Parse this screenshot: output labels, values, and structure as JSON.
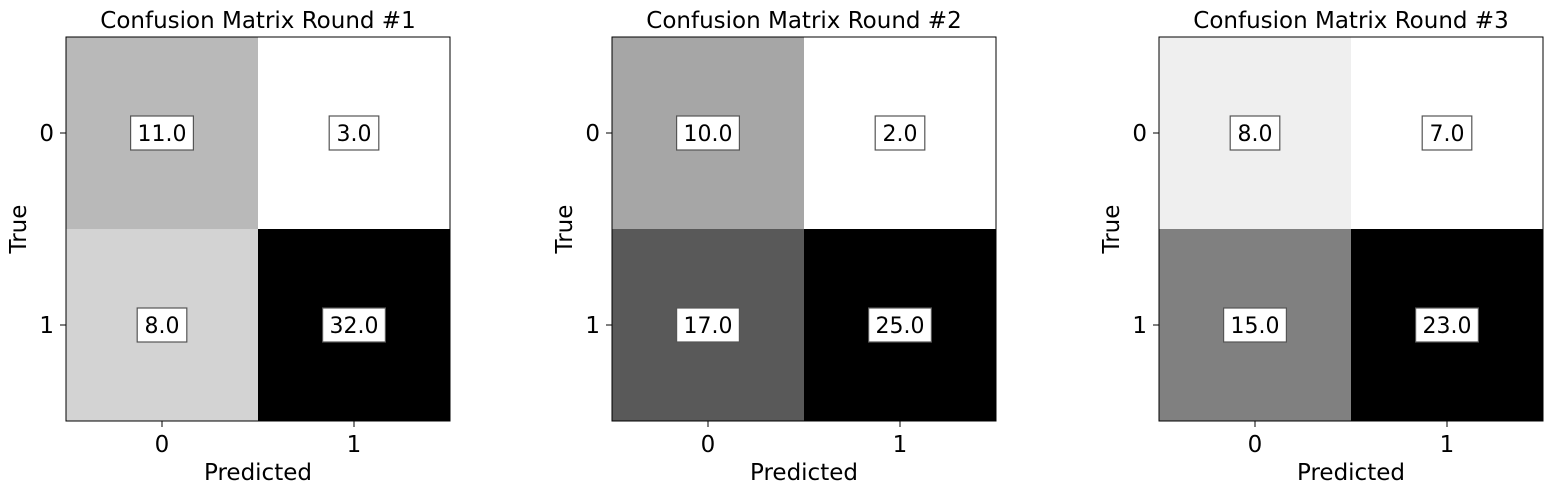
{
  "chart_data": [
    {
      "type": "heatmap",
      "title": "Confusion Matrix Round #1",
      "xlabel": "Predicted",
      "ylabel": "True",
      "x_ticks": [
        "0",
        "1"
      ],
      "y_ticks": [
        "0",
        "1"
      ],
      "cell_labels": [
        [
          "11.0",
          "3.0"
        ],
        [
          "8.0",
          "32.0"
        ]
      ],
      "values": [
        [
          11,
          3
        ],
        [
          8,
          32
        ]
      ],
      "colormap": "grayscale (higher value = darker)",
      "grid": false
    },
    {
      "type": "heatmap",
      "title": "Confusion Matrix Round #2",
      "xlabel": "Predicted",
      "ylabel": "True",
      "x_ticks": [
        "0",
        "1"
      ],
      "y_ticks": [
        "0",
        "1"
      ],
      "cell_labels": [
        [
          "10.0",
          "2.0"
        ],
        [
          "17.0",
          "25.0"
        ]
      ],
      "values": [
        [
          10,
          2
        ],
        [
          17,
          25
        ]
      ],
      "colormap": "grayscale (higher value = darker)",
      "grid": false
    },
    {
      "type": "heatmap",
      "title": "Confusion Matrix Round #3",
      "xlabel": "Predicted",
      "ylabel": "True",
      "x_ticks": [
        "0",
        "1"
      ],
      "y_ticks": [
        "0",
        "1"
      ],
      "cell_labels": [
        [
          "8.0",
          "7.0"
        ],
        [
          "15.0",
          "23.0"
        ]
      ],
      "values": [
        [
          8,
          7
        ],
        [
          15,
          23
        ]
      ],
      "colormap": "grayscale (higher value = darker)",
      "grid": false
    }
  ],
  "colors": {
    "background": "#ffffff",
    "text": "#000000",
    "label_box_border": "#555555"
  }
}
